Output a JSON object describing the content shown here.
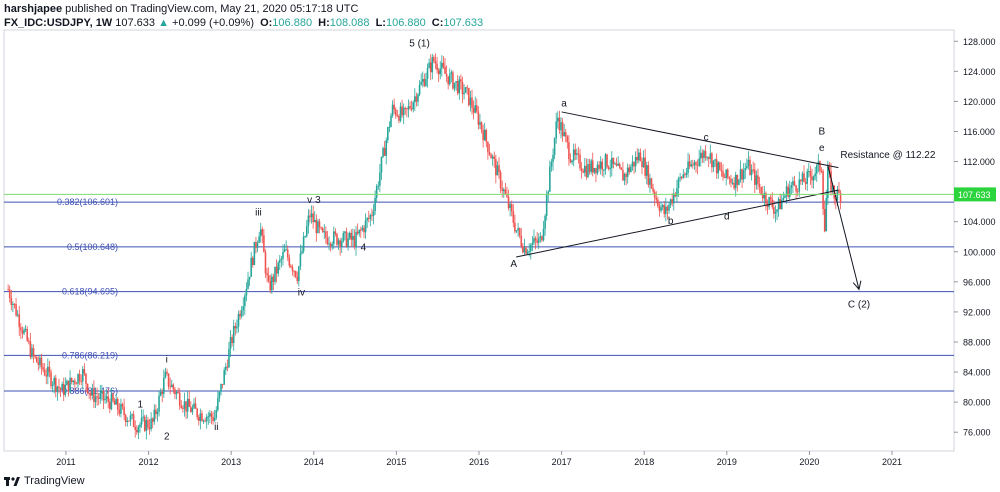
{
  "header": {
    "author": "harshjapee",
    "published_text": "published on TradingView.com, May 21, 2020 05:17:18 UTC",
    "symbol": "FX_IDC:USDJPY, 1W",
    "last": "107.633",
    "change_arrow": "▲",
    "change": "+0.099 (+0.09%)",
    "open_label": "O:",
    "open": "106.880",
    "high_label": "H:",
    "high": "108.088",
    "low_label": "L:",
    "low": "106.880",
    "close_label": "C:",
    "close": "107.633"
  },
  "footer": {
    "brand": "TradingView"
  },
  "colors": {
    "up": "#26a69a",
    "down": "#ef5350",
    "fib": "#3f51b5",
    "trend": "#131722",
    "price_line": "#7cdb6d",
    "price_badge": "#2bd43c"
  },
  "chart_data": {
    "type": "candlestick",
    "symbol": "FX_IDC:USDJPY",
    "interval": "1W",
    "x_axis": {
      "type": "time",
      "range": [
        2010.25,
        2021.75
      ],
      "ticks": [
        "2011",
        "2012",
        "2013",
        "2014",
        "2015",
        "2016",
        "2017",
        "2018",
        "2019",
        "2020",
        "2021"
      ],
      "tick_values": [
        2011,
        2012,
        2013,
        2014,
        2015,
        2016,
        2017,
        2018,
        2019,
        2020,
        2021
      ]
    },
    "y_axis": {
      "side": "right",
      "range": [
        73.5,
        129.5
      ],
      "ticks": [
        "76.000",
        "80.000",
        "84.000",
        "88.000",
        "92.000",
        "96.000",
        "100.000",
        "104.000",
        "108.000",
        "112.000",
        "116.000",
        "120.000",
        "124.000",
        "128.000"
      ],
      "tick_values": [
        76,
        80,
        84,
        88,
        92,
        96,
        100,
        104,
        108,
        112,
        116,
        120,
        124,
        128
      ]
    },
    "grid": false,
    "price_anchors": [
      [
        2010.3,
        95
      ],
      [
        2010.6,
        86
      ],
      [
        2010.95,
        81.5
      ],
      [
        2011.2,
        84
      ],
      [
        2011.3,
        81
      ],
      [
        2011.55,
        80
      ],
      [
        2011.85,
        77
      ],
      [
        2012.05,
        77.2
      ],
      [
        2012.2,
        83.3
      ],
      [
        2012.45,
        79.5
      ],
      [
        2012.6,
        78.5
      ],
      [
        2012.8,
        78
      ],
      [
        2013.0,
        88
      ],
      [
        2013.15,
        94
      ],
      [
        2013.35,
        103.5
      ],
      [
        2013.45,
        95
      ],
      [
        2013.65,
        100
      ],
      [
        2013.8,
        97
      ],
      [
        2013.95,
        105
      ],
      [
        2014.1,
        102
      ],
      [
        2014.5,
        101.5
      ],
      [
        2014.7,
        105
      ],
      [
        2014.95,
        119
      ],
      [
        2015.1,
        118
      ],
      [
        2015.45,
        125.5
      ],
      [
        2015.6,
        123.5
      ],
      [
        2015.85,
        121
      ],
      [
        2016.0,
        117.5
      ],
      [
        2016.3,
        108
      ],
      [
        2016.45,
        103
      ],
      [
        2016.55,
        100.5
      ],
      [
        2016.75,
        101.5
      ],
      [
        2016.95,
        118
      ],
      [
        2017.1,
        113
      ],
      [
        2017.3,
        111
      ],
      [
        2017.55,
        112
      ],
      [
        2017.75,
        110
      ],
      [
        2017.95,
        113
      ],
      [
        2018.15,
        107
      ],
      [
        2018.25,
        105
      ],
      [
        2018.45,
        110
      ],
      [
        2018.75,
        113.5
      ],
      [
        2018.95,
        110
      ],
      [
        2019.1,
        109.5
      ],
      [
        2019.25,
        111.5
      ],
      [
        2019.45,
        107.5
      ],
      [
        2019.6,
        105.5
      ],
      [
        2019.75,
        108.5
      ],
      [
        2019.95,
        109.5
      ],
      [
        2020.15,
        111.5
      ],
      [
        2020.18,
        102
      ],
      [
        2020.22,
        110.5
      ],
      [
        2020.3,
        107.5
      ],
      [
        2020.38,
        107.6
      ]
    ],
    "last_price": {
      "value": 107.633,
      "label": "107.633"
    },
    "fib_levels": [
      {
        "label": "0.382(106.601)",
        "value": 106.601
      },
      {
        "label": "0.5(100.648)",
        "value": 100.648
      },
      {
        "label": "0.618(94.695)",
        "value": 94.695
      },
      {
        "label": "0.786(86.219)",
        "value": 86.219
      },
      {
        "label": "0.886(81.476)",
        "value": 81.476
      }
    ],
    "fib_x_start": 2010.25,
    "trendlines": [
      {
        "from": [
          2017.0,
          118.6
        ],
        "to": [
          2020.35,
          111.2
        ]
      },
      {
        "from": [
          2016.45,
          99.3
        ],
        "to": [
          2020.35,
          108.2
        ]
      },
      {
        "from": [
          2020.22,
          111.6
        ],
        "to": [
          2020.6,
          95.0
        ],
        "arrow": true
      }
    ],
    "annotations": [
      {
        "text": "5 (1)",
        "x": 2015.28,
        "y": 127.3
      },
      {
        "text": "v",
        "x": 2013.95,
        "y": 106.5
      },
      {
        "text": "3",
        "x": 2014.05,
        "y": 106.5
      },
      {
        "text": "iii",
        "x": 2013.33,
        "y": 104.8
      },
      {
        "text": "iv",
        "x": 2013.85,
        "y": 94.2
      },
      {
        "text": "4",
        "x": 2014.6,
        "y": 100.2
      },
      {
        "text": "i",
        "x": 2012.22,
        "y": 85.3
      },
      {
        "text": "ii",
        "x": 2012.82,
        "y": 76.3
      },
      {
        "text": "1",
        "x": 2011.9,
        "y": 79.3
      },
      {
        "text": "2",
        "x": 2012.22,
        "y": 75.0
      },
      {
        "text": "a",
        "x": 2017.03,
        "y": 119.3
      },
      {
        "text": "b",
        "x": 2018.32,
        "y": 103.7
      },
      {
        "text": "c",
        "x": 2018.75,
        "y": 114.8
      },
      {
        "text": "d",
        "x": 2019.0,
        "y": 104.3
      },
      {
        "text": "A",
        "x": 2016.42,
        "y": 98.0
      },
      {
        "text": "B",
        "x": 2020.15,
        "y": 115.6
      },
      {
        "text": "e",
        "x": 2020.15,
        "y": 113.4
      },
      {
        "text": "Resistance @ 112.22",
        "x": 2020.95,
        "y": 112.5
      },
      {
        "text": "C (2)",
        "x": 2020.6,
        "y": 92.6
      }
    ]
  }
}
